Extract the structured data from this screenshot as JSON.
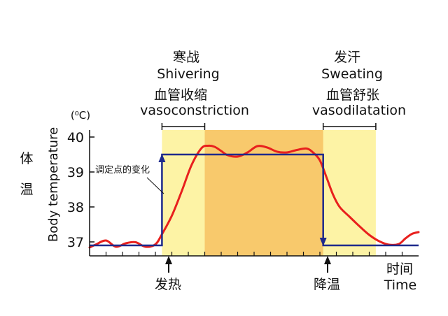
{
  "chart_data": {
    "type": "line",
    "ylabel": "Body temperature",
    "ylabel_cn": "体温",
    "unit": "(⁰C)",
    "yticks": [
      37,
      38,
      39,
      40
    ],
    "ylim": [
      36.6,
      40.2
    ],
    "xlim": [
      0,
      100
    ],
    "xlabel_cn": "时间",
    "xlabel": "Time",
    "setpoint_label": "调定点的变化",
    "setpoint": {
      "x": [
        0,
        22,
        22,
        71,
        71,
        100
      ],
      "y": [
        36.9,
        36.9,
        39.5,
        39.5,
        36.9,
        36.9
      ]
    },
    "temperature": {
      "x": [
        0,
        2,
        5,
        8,
        11,
        14,
        17,
        20,
        22,
        25,
        28,
        31,
        34,
        36,
        38,
        40,
        42,
        45,
        48,
        51,
        54,
        57,
        60,
        63,
        66,
        68,
        70,
        72,
        74,
        76,
        79,
        82,
        85,
        88,
        91,
        94,
        96,
        98,
        100
      ],
      "y": [
        36.84,
        36.93,
        37.04,
        36.86,
        36.96,
        36.99,
        36.86,
        36.93,
        37.22,
        37.75,
        38.45,
        39.2,
        39.68,
        39.75,
        39.72,
        39.6,
        39.48,
        39.44,
        39.56,
        39.74,
        39.7,
        39.58,
        39.56,
        39.63,
        39.67,
        39.55,
        39.33,
        38.85,
        38.35,
        38.0,
        37.72,
        37.45,
        37.2,
        37.02,
        36.92,
        36.94,
        37.1,
        37.23,
        37.28
      ]
    },
    "phases": [
      {
        "name_cn": "寒战",
        "name": "Shivering",
        "sub_cn": "血管收缩",
        "sub": "vasoconstriction",
        "x_range": [
          22,
          35
        ]
      },
      {
        "name_cn": "发汗",
        "name": "Sweating",
        "sub_cn": "血管舒张",
        "sub": "vasodilatation",
        "x_range": [
          71,
          87
        ]
      }
    ],
    "events": [
      {
        "label": "发热",
        "x": 22
      },
      {
        "label": "降温",
        "x": 71
      }
    ],
    "colors": {
      "light_band": "#fdf3a5",
      "dark_band": "#f8c96c",
      "temperature_line": "#e8201d",
      "setpoint_line": "#1e2a8c",
      "axis": "#111111"
    }
  }
}
